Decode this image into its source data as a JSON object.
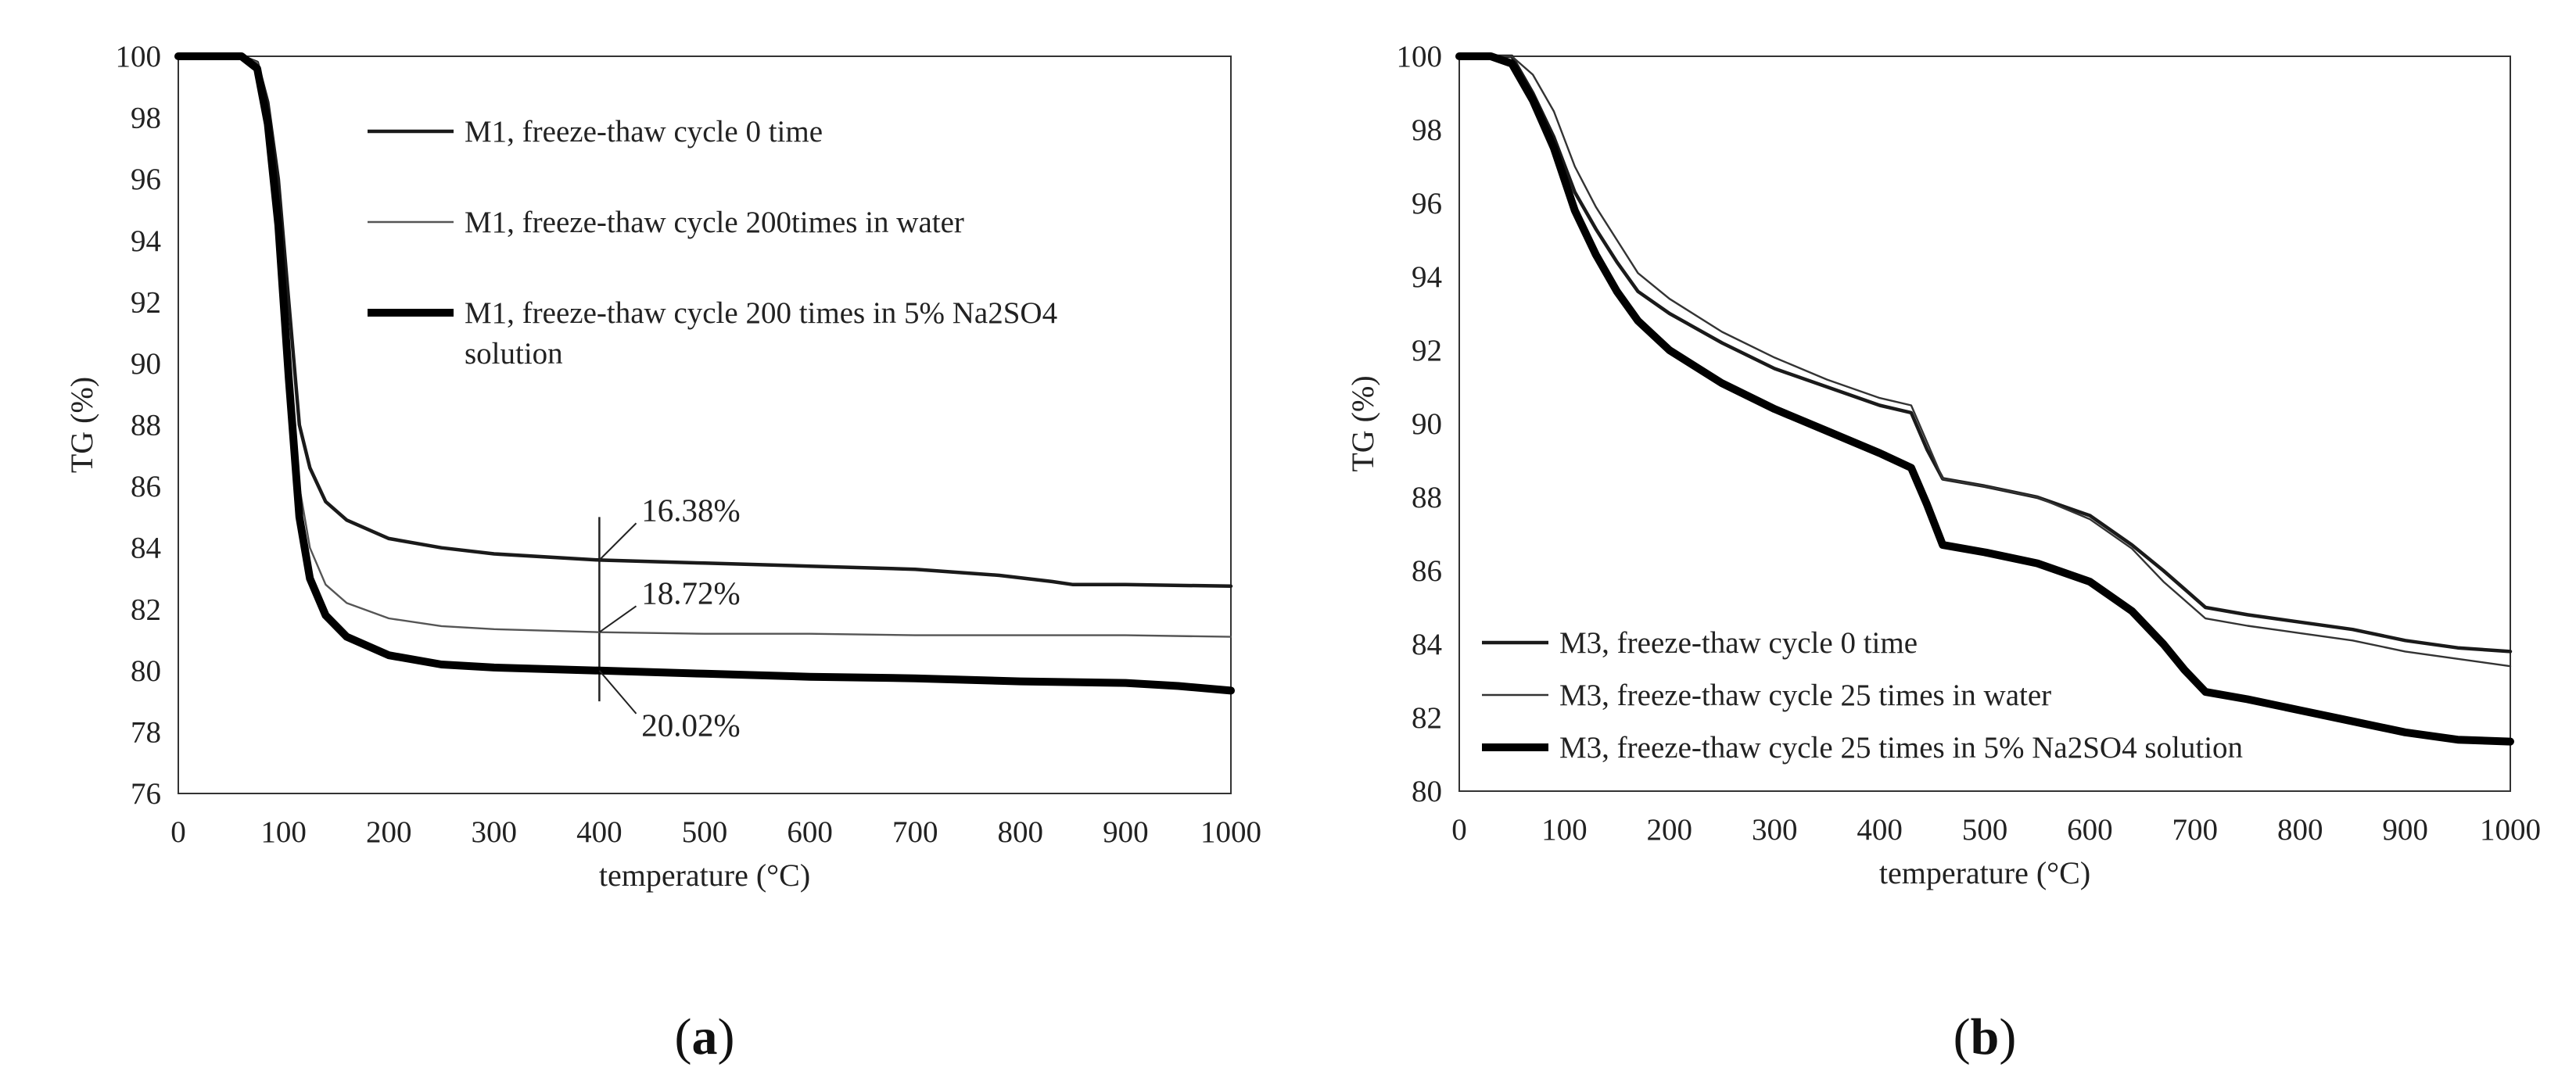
{
  "chart_data": [
    {
      "type": "line",
      "panel_label": "a",
      "xlabel": "temperature (°C)",
      "ylabel": "TG (%)",
      "xlim": [
        0,
        1000
      ],
      "ylim": [
        76,
        100
      ],
      "xticks": [
        0,
        100,
        200,
        300,
        400,
        500,
        600,
        700,
        800,
        900,
        1000
      ],
      "yticks": [
        76,
        78,
        80,
        82,
        84,
        86,
        88,
        90,
        92,
        94,
        96,
        98,
        100
      ],
      "legend_position": "top-center",
      "series": [
        {
          "name": "M1, freeze-thaw cycle 0 time",
          "name_lines": [
            "M1, freeze-thaw cycle 0 time"
          ],
          "stroke": "#1a1a1a",
          "weight": "medium",
          "x": [
            0,
            60,
            75,
            85,
            95,
            105,
            115,
            125,
            140,
            160,
            200,
            250,
            300,
            400,
            500,
            600,
            700,
            780,
            830,
            850,
            900,
            1000
          ],
          "y": [
            100,
            100,
            99.8,
            98.5,
            96,
            92,
            88,
            86.6,
            85.5,
            84.9,
            84.3,
            84,
            83.8,
            83.6,
            83.5,
            83.4,
            83.3,
            83.1,
            82.9,
            82.8,
            82.8,
            82.75
          ]
        },
        {
          "name": "M1, freeze-thaw cycle 200times in water",
          "name_lines": [
            "M1, freeze-thaw cycle 200times in water"
          ],
          "stroke": "#555555",
          "weight": "thin",
          "x": [
            0,
            60,
            75,
            85,
            95,
            105,
            115,
            125,
            140,
            160,
            200,
            250,
            300,
            400,
            500,
            600,
            700,
            800,
            900,
            1000
          ],
          "y": [
            100,
            100,
            99.8,
            98.2,
            95.2,
            90.5,
            86,
            84,
            82.8,
            82.2,
            81.7,
            81.45,
            81.35,
            81.25,
            81.2,
            81.2,
            81.15,
            81.15,
            81.15,
            81.1
          ]
        },
        {
          "name": "M1, freeze-thaw cycle 200 times in 5% Na2SO4 solution",
          "name_lines": [
            "M1, freeze-thaw cycle 200 times in 5% Na2SO4",
            "solution"
          ],
          "stroke": "#000000",
          "weight": "thick",
          "x": [
            0,
            60,
            75,
            85,
            95,
            105,
            115,
            125,
            140,
            160,
            200,
            250,
            300,
            400,
            500,
            600,
            700,
            800,
            900,
            950,
            1000
          ],
          "y": [
            100,
            100,
            99.6,
            97.8,
            94.5,
            89.5,
            85,
            83,
            81.8,
            81.1,
            80.5,
            80.2,
            80.1,
            80,
            79.9,
            79.8,
            79.75,
            79.65,
            79.6,
            79.5,
            79.35
          ]
        }
      ],
      "annotations": [
        {
          "text": "16.38%",
          "x": 440,
          "y": 85.2
        },
        {
          "text": "18.72%",
          "x": 440,
          "y": 82.5
        },
        {
          "text": "20.02%",
          "x": 440,
          "y": 78.2
        }
      ],
      "marker_line_x": 400,
      "marker_line_range": [
        79,
        85
      ]
    },
    {
      "type": "line",
      "panel_label": "b",
      "xlabel": "temperature (°C)",
      "ylabel": "TG (%)",
      "xlim": [
        0,
        1000
      ],
      "ylim": [
        80,
        100
      ],
      "xticks": [
        0,
        100,
        200,
        300,
        400,
        500,
        600,
        700,
        800,
        900,
        1000
      ],
      "yticks": [
        80,
        82,
        84,
        86,
        88,
        90,
        92,
        94,
        96,
        98,
        100
      ],
      "legend_position": "bottom-left",
      "series": [
        {
          "name": "M3, freeze-thaw cycle 0 time",
          "name_lines": [
            "M3, freeze-thaw cycle 0 time"
          ],
          "stroke": "#1a1a1a",
          "weight": "medium",
          "x": [
            0,
            30,
            50,
            70,
            90,
            110,
            130,
            150,
            170,
            200,
            250,
            300,
            350,
            400,
            430,
            445,
            460,
            500,
            550,
            600,
            640,
            670,
            690,
            710,
            750,
            800,
            850,
            900,
            950,
            1000
          ],
          "y": [
            100,
            100,
            100,
            99,
            97.8,
            96.3,
            95.3,
            94.4,
            93.6,
            93,
            92.2,
            91.5,
            91,
            90.5,
            90.3,
            89.3,
            88.5,
            88.3,
            88,
            87.5,
            86.7,
            86,
            85.5,
            85,
            84.8,
            84.6,
            84.4,
            84.1,
            83.9,
            83.8
          ]
        },
        {
          "name": "M3, freeze-thaw cycle 25 times in water",
          "name_lines": [
            "M3, freeze-thaw cycle 25 times in water"
          ],
          "stroke": "#333333",
          "weight": "thin",
          "x": [
            0,
            30,
            50,
            70,
            90,
            110,
            130,
            150,
            170,
            200,
            250,
            300,
            350,
            400,
            430,
            445,
            460,
            500,
            550,
            600,
            640,
            670,
            690,
            710,
            750,
            800,
            850,
            900,
            950,
            1000
          ],
          "y": [
            100,
            100,
            100,
            99.5,
            98.5,
            97,
            95.9,
            95,
            94.1,
            93.4,
            92.5,
            91.8,
            91.2,
            90.7,
            90.5,
            89.5,
            88.5,
            88.3,
            88,
            87.4,
            86.6,
            85.7,
            85.2,
            84.7,
            84.5,
            84.3,
            84.1,
            83.8,
            83.6,
            83.4
          ]
        },
        {
          "name": "M3, freeze-thaw cycle 25 times in 5% Na2SO4 solution",
          "name_lines": [
            "M3, freeze-thaw cycle 25 times in 5% Na2SO4 solution"
          ],
          "stroke": "#000000",
          "weight": "thick",
          "x": [
            0,
            30,
            50,
            70,
            90,
            110,
            130,
            150,
            170,
            200,
            250,
            300,
            350,
            400,
            430,
            445,
            460,
            500,
            550,
            600,
            640,
            670,
            690,
            710,
            750,
            800,
            850,
            900,
            950,
            1000
          ],
          "y": [
            100,
            100,
            99.8,
            98.8,
            97.5,
            95.8,
            94.6,
            93.6,
            92.8,
            92,
            91.1,
            90.4,
            89.8,
            89.2,
            88.8,
            87.8,
            86.7,
            86.5,
            86.2,
            85.7,
            84.9,
            84,
            83.3,
            82.7,
            82.5,
            82.2,
            81.9,
            81.6,
            81.4,
            81.35
          ]
        }
      ]
    }
  ]
}
